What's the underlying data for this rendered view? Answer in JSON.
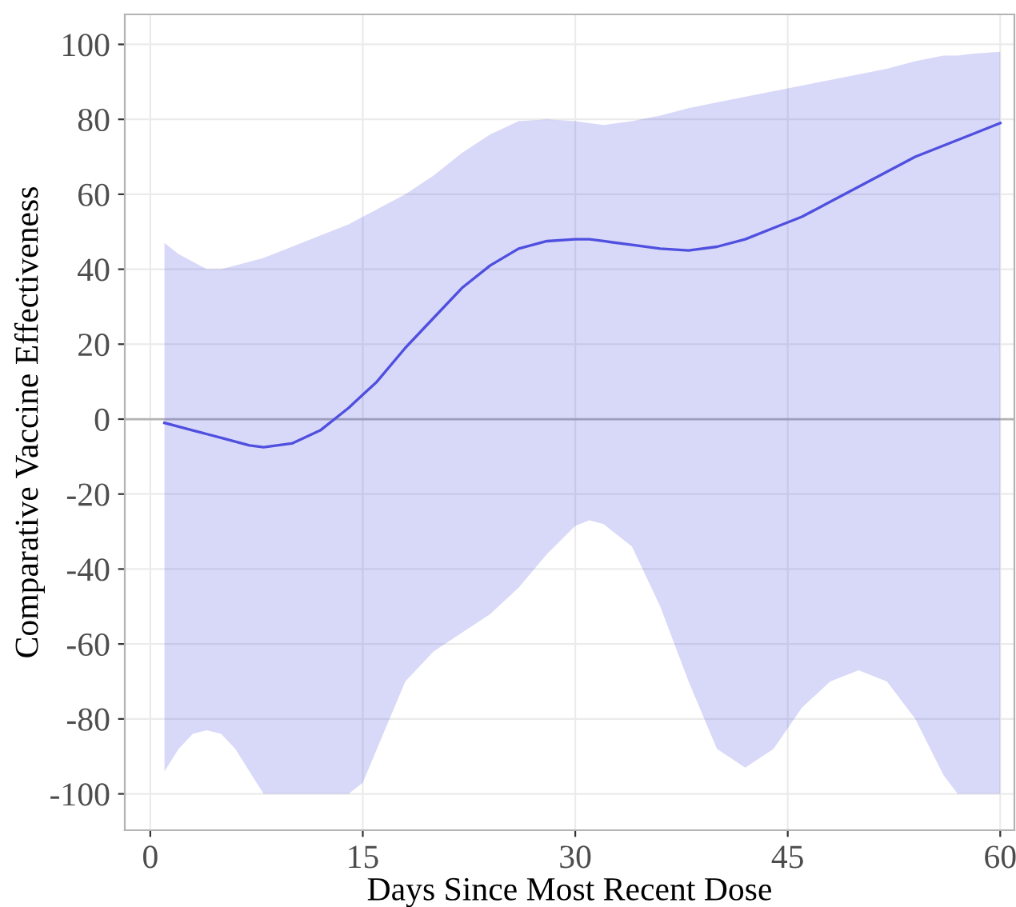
{
  "chart_data": {
    "type": "line",
    "xlabel": "Days Since Most Recent Dose",
    "ylabel": "Comparative Vaccine Effectiveness",
    "xlim": [
      -1.8,
      61
    ],
    "ylim": [
      -109.7,
      108
    ],
    "xticks": [
      0,
      15,
      30,
      45,
      60
    ],
    "yticks": [
      -100,
      -80,
      -60,
      -40,
      -20,
      0,
      20,
      40,
      60,
      80,
      100
    ],
    "grid": true,
    "line_style": "solid",
    "marker": "none",
    "ref_lines": [
      {
        "axis": "y",
        "value": 0,
        "color": "#b3b3b3"
      }
    ],
    "series": [
      {
        "color": "#4f4fe0",
        "x": [
          1,
          2,
          3,
          4,
          5,
          6,
          7,
          8,
          10,
          12,
          14,
          15,
          16,
          18,
          20,
          22,
          24,
          26,
          28,
          30,
          31,
          32,
          34,
          36,
          38,
          40,
          42,
          44,
          46,
          48,
          50,
          52,
          54,
          56,
          57,
          58,
          60
        ],
        "values": [
          -1,
          -2,
          -3,
          -4,
          -5,
          -6,
          -7,
          -7.5,
          -6.5,
          -3,
          3,
          6.5,
          10,
          19,
          27,
          35,
          41,
          45.5,
          47.5,
          48,
          48,
          47.5,
          46.5,
          45.5,
          45,
          46,
          48,
          51,
          54,
          58,
          62,
          66,
          70,
          73,
          74.5,
          76,
          79
        ],
        "upper": [
          47,
          44,
          42,
          40,
          40,
          41,
          42,
          43,
          46,
          49,
          52,
          54,
          56,
          60,
          65,
          71,
          76,
          79.5,
          80,
          79.5,
          79,
          78.5,
          79.5,
          81,
          83,
          84.5,
          86,
          87.5,
          89,
          90.5,
          92,
          93.5,
          95.5,
          97,
          97,
          97.5,
          98
        ],
        "lower": [
          -94,
          -88,
          -84,
          -83,
          -84,
          -88,
          -94,
          -100,
          -100,
          -100,
          -100,
          -97,
          -88,
          -70,
          -62,
          -57,
          -52,
          -45,
          -36,
          -28.5,
          -27,
          -28,
          -34,
          -50,
          -70,
          -88,
          -93,
          -88,
          -77,
          -70,
          -67,
          -70,
          -80,
          -95,
          -100,
          -100,
          -100
        ]
      }
    ]
  }
}
